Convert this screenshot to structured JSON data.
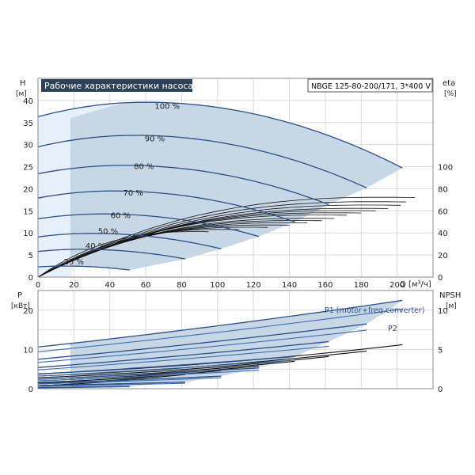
{
  "chart_data": [
    {
      "type": "line",
      "title": "Рабочие характеристики насоса",
      "model": "NBGE 125-80-200/171, 3*400 V",
      "xlabel": "Q [м³/ч]",
      "ylabel": "H [м]",
      "ylabel_name": "H",
      "ylabel_unit": "[м]",
      "y2label_name": "eta",
      "y2label_unit": "[%]",
      "xlim": [
        0,
        220
      ],
      "ylim": [
        0,
        45
      ],
      "y2lim": [
        0,
        180
      ],
      "xticks": [
        0,
        20,
        40,
        60,
        80,
        100,
        120,
        140,
        160,
        180,
        200
      ],
      "yticks": [
        0,
        5,
        10,
        15,
        20,
        25,
        30,
        35,
        40
      ],
      "y2ticks": [
        0,
        20,
        40,
        60,
        80,
        100
      ],
      "grid": true,
      "speed_curves": [
        {
          "name": "100 %",
          "shutoff": 36.3,
          "peak": [
            60,
            39.6
          ],
          "end": [
            203,
            24.7
          ],
          "label_at": [
            72,
            38.8
          ]
        },
        {
          "name": "90 %",
          "shutoff": 29.5,
          "peak": [
            54,
            32.1
          ],
          "end": [
            183,
            20.2
          ],
          "label_at": [
            65,
            31.5
          ]
        },
        {
          "name": "80 %",
          "shutoff": 23.4,
          "peak": [
            48,
            25.3
          ],
          "end": [
            162,
            16.4
          ],
          "label_at": [
            59,
            25.2
          ]
        },
        {
          "name": "70 %",
          "shutoff": 17.9,
          "peak": [
            42,
            19.5
          ],
          "end": [
            143,
            12.5
          ],
          "label_at": [
            53,
            19.2
          ]
        },
        {
          "name": "60 %",
          "shutoff": 13.2,
          "peak": [
            36,
            14.3
          ],
          "end": [
            123,
            9.2
          ],
          "label_at": [
            46,
            14.1
          ]
        },
        {
          "name": "50 %",
          "shutoff": 9.1,
          "peak": [
            30,
            9.9
          ],
          "end": [
            102,
            6.4
          ],
          "label_at": [
            39,
            10.5
          ]
        },
        {
          "name": "40 %",
          "shutoff": 5.8,
          "peak": [
            24,
            6.3
          ],
          "end": [
            82,
            4.1
          ],
          "label_at": [
            32,
            7.2
          ]
        },
        {
          "name": "25 %",
          "shutoff": 2.3,
          "peak": [
            15,
            2.5
          ],
          "end": [
            51,
            1.6
          ],
          "label_at": [
            20,
            3.6
          ]
        }
      ],
      "efficiency_curves_count": 14,
      "efficiency_end": [
        [
          210,
          72
        ],
        [
          205,
          68
        ],
        [
          202,
          65
        ],
        [
          195,
          62
        ],
        [
          188,
          60
        ],
        [
          180,
          58
        ],
        [
          172,
          56
        ],
        [
          165,
          53
        ],
        [
          158,
          51
        ],
        [
          150,
          49
        ],
        [
          140,
          47
        ],
        [
          128,
          45
        ],
        [
          112,
          43
        ],
        [
          95,
          41
        ]
      ]
    },
    {
      "type": "line",
      "xlabel": "Q [м³/ч]",
      "ylabel": "P [кВт]",
      "ylabel_name": "P",
      "ylabel_unit": "[кВт]",
      "y2label_name": "NPSH",
      "y2label_unit": "[м]",
      "xlim": [
        0,
        220
      ],
      "ylim": [
        0,
        25
      ],
      "y2lim": [
        0,
        12.5
      ],
      "yticks": [
        0,
        10,
        20
      ],
      "y2ticks": [
        0,
        5,
        10
      ],
      "grid": true,
      "series_labels": [
        "P1 (motor+freq.converter)",
        "P2"
      ],
      "p1_curves": [
        {
          "start": 10.6,
          "end": [
            203,
            22.5
          ]
        },
        {
          "start": 7.5,
          "end": [
            183,
            16.5
          ]
        },
        {
          "start": 5.4,
          "end": [
            162,
            12.0
          ]
        },
        {
          "start": 3.7,
          "end": [
            143,
            8.2
          ]
        },
        {
          "start": 2.4,
          "end": [
            123,
            5.3
          ]
        },
        {
          "start": 1.4,
          "end": [
            102,
            3.2
          ]
        },
        {
          "start": 0.8,
          "end": [
            82,
            1.7
          ]
        },
        {
          "start": 0.3,
          "end": [
            51,
            0.6
          ]
        }
      ],
      "p2_curves": [
        {
          "start": 9.4,
          "end": [
            203,
            20.3
          ]
        },
        {
          "start": 6.7,
          "end": [
            183,
            14.9
          ]
        },
        {
          "start": 4.8,
          "end": [
            162,
            10.8
          ]
        },
        {
          "start": 3.2,
          "end": [
            143,
            7.3
          ]
        },
        {
          "start": 2.0,
          "end": [
            123,
            4.7
          ]
        },
        {
          "start": 1.2,
          "end": [
            102,
            2.8
          ]
        },
        {
          "start": 0.6,
          "end": [
            82,
            1.4
          ]
        },
        {
          "start": 0.2,
          "end": [
            51,
            0.5
          ]
        }
      ],
      "npsh_curves": [
        {
          "start": 1.9,
          "end": [
            203,
            5.6
          ]
        },
        {
          "start": 1.6,
          "end": [
            183,
            4.8
          ]
        },
        {
          "start": 1.4,
          "end": [
            162,
            4.1
          ]
        },
        {
          "start": 1.2,
          "end": [
            143,
            3.5
          ]
        },
        {
          "start": 1.0,
          "end": [
            123,
            2.9
          ]
        },
        {
          "start": 0.8,
          "end": [
            102,
            2.3
          ]
        },
        {
          "start": 0.6,
          "end": [
            82,
            1.8
          ]
        },
        {
          "start": 0.4,
          "end": [
            51,
            1.1
          ]
        }
      ]
    }
  ],
  "colors": {
    "curve_blue": "#2b4f86",
    "fill_blue": "#c8d7e6",
    "fill_light": "#e6f0fa",
    "title_bg": "#2e4257",
    "grid": "#dcdcdc",
    "black": "#111111"
  }
}
